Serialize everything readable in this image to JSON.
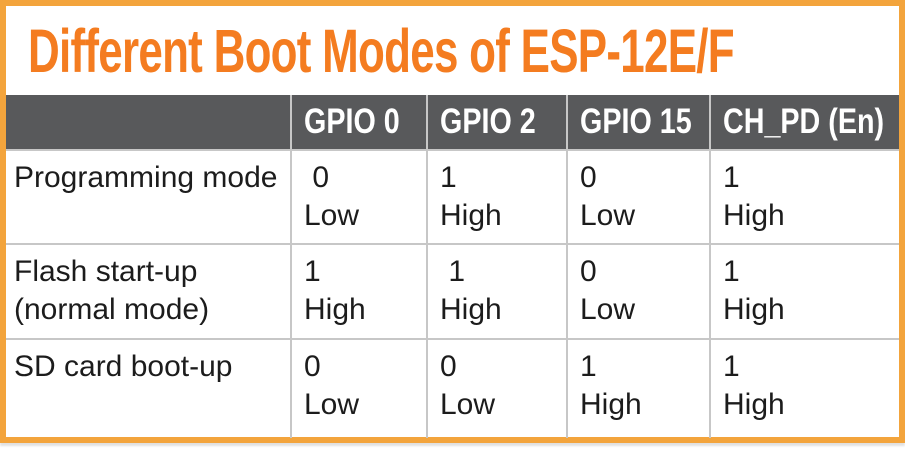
{
  "title": "Different Boot Modes of ESP-12E/F",
  "colors": {
    "title_orange": "#F47C20",
    "frame_orange": "#F3A43C",
    "header_bg": "#58595B",
    "header_text": "#FFFFFF",
    "grid_line": "#C7C7C7",
    "body_text": "#1C1C1C"
  },
  "table": {
    "columns": [
      "",
      "GPIO 0",
      "GPIO 2",
      "GPIO 15",
      "CH_PD (En)"
    ],
    "rows": [
      {
        "label": "Programming mode",
        "cells": [
          " 0\nLow",
          "1\nHigh",
          "0\nLow",
          "1\nHigh"
        ]
      },
      {
        "label": "Flash start-up\n(normal mode)",
        "cells": [
          "1\nHigh",
          " 1\nHigh",
          "0\nLow",
          "1\nHigh"
        ]
      },
      {
        "label": "SD card boot-up",
        "cells": [
          "0\nLow",
          "0\nLow",
          "1\nHigh",
          "1\nHigh"
        ]
      }
    ]
  }
}
